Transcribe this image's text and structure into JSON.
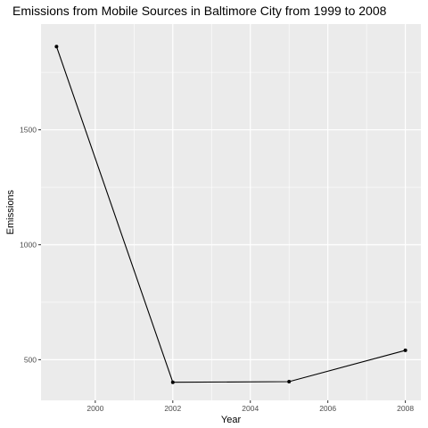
{
  "chart_data": {
    "type": "line",
    "title": "Emissions from Mobile Sources in Baltimore City from 1999 to 2008",
    "xlabel": "Year",
    "ylabel": "Emissions",
    "x": [
      1999,
      2002,
      2005,
      2008
    ],
    "series": [
      {
        "values": [
          1862.28,
          401.64,
          404.51,
          540.54
        ]
      }
    ],
    "xlim": [
      1998.6,
      2008.4
    ],
    "ylim": [
      323,
      1960
    ],
    "x_ticks": [
      2000,
      2002,
      2004,
      2006,
      2008
    ],
    "x_tick_labels": [
      "2000",
      "2002",
      "2004",
      "2006",
      "2008"
    ],
    "y_ticks": [
      500,
      1000,
      1500
    ],
    "y_tick_labels": [
      "500",
      "1000",
      "1500"
    ],
    "grid": true,
    "legend": "none",
    "colors": {
      "panel_background": "#ebebeb",
      "grid_major": "#ffffff",
      "line": "#000000",
      "point": "#000000",
      "tick_label": "#4d4d4d"
    }
  }
}
